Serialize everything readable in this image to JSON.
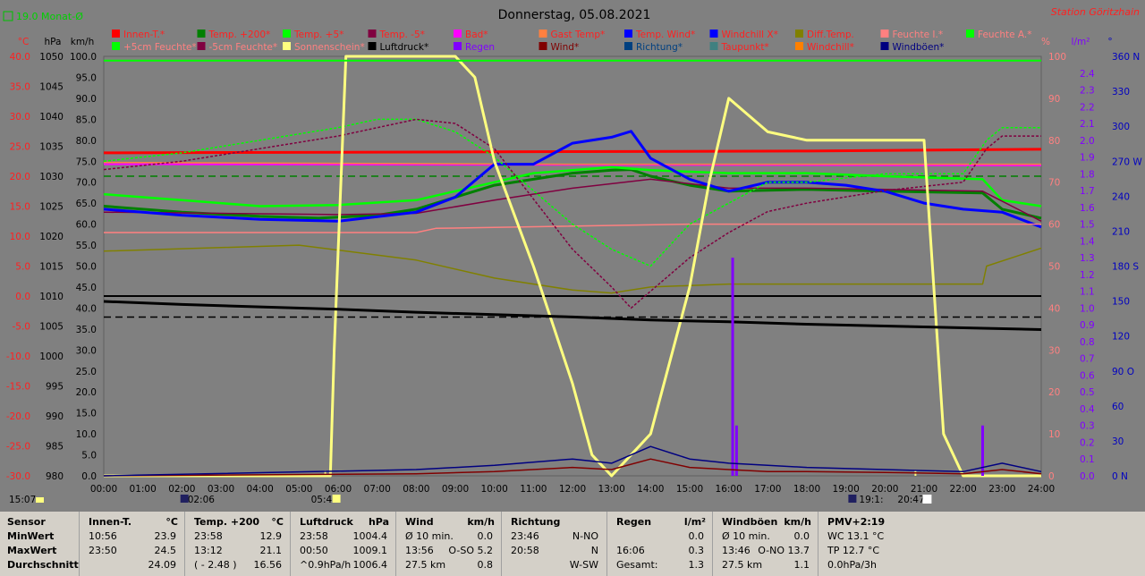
{
  "header": {
    "title": "Donnerstag, 05.08.2021",
    "station": "Station Göritzhain",
    "monthly_avg": "19.0 Monat-Ø"
  },
  "legend": [
    [
      "Innen-T.*",
      "#ff0000",
      "#ff2020"
    ],
    [
      "Temp. +200*",
      "#008000",
      "#ff2020"
    ],
    [
      "Temp. +5*",
      "#00ff00",
      "#ff2020"
    ],
    [
      "Temp. -5*",
      "#800040",
      "#ff2020"
    ],
    [
      "Bad*",
      "#ff00ff",
      "#ff2020"
    ],
    [
      "Gast Temp*",
      "#ff8040",
      "#ff2020"
    ],
    [
      "Temp. Wind*",
      "#0000ff",
      "#ff2020"
    ],
    [
      "Windchill X*",
      "#0000ff",
      "#ff2020"
    ],
    [
      "Diff.Temp.",
      "#808000",
      "#ff2020"
    ],
    [
      "Feuchte I.*",
      "#ff8080",
      "#ff8080"
    ],
    [
      "Feuchte A.*",
      "#00ff00",
      "#ff8080"
    ],
    [
      "+5cm Feuchte*",
      "#00ff00",
      "#ff8080"
    ],
    [
      "-5cm Feuchte*",
      "#800040",
      "#ff8080"
    ],
    [
      "Sonnenschein*",
      "#ffff80",
      "#ff8080"
    ],
    [
      "Luftdruck*",
      "#000000",
      "#000000"
    ],
    [
      "Regen",
      "#8000ff",
      "#8000ff"
    ],
    [
      "Wind*",
      "#800000",
      "#800000"
    ],
    [
      "Richtung*",
      "#004080",
      "#004080"
    ],
    [
      "Taupunkt*",
      "#408080",
      "#ff2020"
    ],
    [
      "Windchill*",
      "#ff8000",
      "#ff2020"
    ],
    [
      "Windböen*",
      "#000080",
      "#000080"
    ]
  ],
  "axes": {
    "temp_unit": "°C",
    "hpa_unit": "hPa",
    "kmh_unit": "km/h",
    "pct_unit": "%",
    "rain_unit": "l/m²",
    "dir_unit": "°",
    "temp": [
      "40.0",
      "35.0",
      "30.0",
      "25.0",
      "20.0",
      "15.0",
      "10.0",
      "5.0",
      "0.0",
      "-5.0",
      "-10.0",
      "-15.0",
      "-20.0",
      "-25.0",
      "-30.0"
    ],
    "hpa": [
      "1050",
      "1045",
      "1040",
      "1035",
      "1030",
      "1025",
      "1020",
      "1015",
      "1010",
      "1005",
      "1000",
      "995",
      "990",
      "985",
      "980"
    ],
    "kmh": [
      "100.0",
      "95.0",
      "90.0",
      "85.0",
      "80.0",
      "75.0",
      "70.0",
      "65.0",
      "60.0",
      "55.0",
      "50.0",
      "45.0",
      "40.0",
      "35.0",
      "30.0",
      "25.0",
      "20.0",
      "15.0",
      "10.0",
      "5.0",
      "0.0"
    ],
    "pct": [
      "100",
      "90",
      "80",
      "70",
      "60",
      "50",
      "40",
      "30",
      "20",
      "10",
      "0"
    ],
    "rain": [
      "2.4",
      "2.3",
      "2.2",
      "2.1",
      "2.0",
      "1.9",
      "1.8",
      "1.7",
      "1.6",
      "1.5",
      "1.4",
      "1.3",
      "1.2",
      "1.1",
      "1.0",
      "0.9",
      "0.8",
      "0.7",
      "0.6",
      "0.5",
      "0.4",
      "0.3",
      "0.2",
      "0.1",
      "0.0"
    ],
    "dir": [
      "360 N",
      "330",
      "300",
      "270 W",
      "240",
      "210",
      "180 S",
      "150",
      "120",
      "90 O",
      "60",
      "30",
      "0 N"
    ],
    "time": [
      "00:00",
      "01:00",
      "02:00",
      "03:00",
      "04:00",
      "05:00",
      "06:00",
      "07:00",
      "08:00",
      "09:00",
      "10:00",
      "11:00",
      "12:00",
      "13:00",
      "14:00",
      "15:00",
      "16:00",
      "17:00",
      "18:00",
      "19:00",
      "20:00",
      "21:00",
      "22:00",
      "23:00",
      "24:00"
    ]
  },
  "markers": {
    "now": "15:07",
    "sunrise": "02:06",
    "sunrise_full": "05:40",
    "sunset_full": "19:1:",
    "sunset": "20:47"
  },
  "chart_data": {
    "type": "line",
    "title": "Donnerstag, 05.08.2021",
    "x_range": [
      "00:00",
      "24:00"
    ],
    "ylim_temp": [
      -30,
      40
    ],
    "ylim_hpa": [
      980,
      1050
    ],
    "ylim_pct": [
      0,
      100
    ],
    "ylim_rain": [
      0,
      2.5
    ],
    "series": [
      {
        "name": "Innen-T.*",
        "axis": "temp",
        "color": "#ff0000",
        "x": [
          0,
          6,
          12,
          18,
          24
        ],
        "y": [
          23.9,
          24.0,
          24.1,
          24.2,
          24.5
        ]
      },
      {
        "name": "Temp. +200*",
        "axis": "temp",
        "color": "#008000",
        "x": [
          0,
          2,
          4,
          5.5,
          7,
          8,
          9,
          10,
          11,
          12,
          13,
          13.5,
          14,
          15,
          16,
          18,
          20,
          22.5,
          23,
          24
        ],
        "y": [
          15.0,
          14.0,
          13.3,
          13.0,
          13.5,
          14.5,
          16.5,
          18.5,
          19.5,
          20.5,
          21.0,
          21.1,
          20.0,
          18.5,
          17.5,
          17.8,
          17.5,
          17.2,
          14.5,
          13.0
        ]
      },
      {
        "name": "Temp. +5*",
        "axis": "temp",
        "color": "#00ff00",
        "x": [
          0,
          2,
          4,
          6,
          8,
          10,
          11,
          12,
          13,
          14,
          16,
          18,
          20,
          22.5,
          23,
          24
        ],
        "y": [
          17.0,
          16.0,
          15.0,
          15.2,
          16.0,
          19.0,
          20.5,
          21.0,
          21.5,
          21.0,
          20.5,
          20.5,
          20.0,
          19.5,
          16.0,
          15.0
        ]
      },
      {
        "name": "Temp. -5*",
        "axis": "temp",
        "color": "#800040",
        "x": [
          0,
          3,
          6,
          8,
          10,
          12,
          14,
          16,
          18,
          20,
          22.5,
          24
        ],
        "y": [
          14.0,
          13.8,
          13.6,
          13.8,
          16.0,
          18.0,
          19.5,
          18.0,
          18.0,
          17.8,
          17.5,
          12.5
        ]
      },
      {
        "name": "Bad*",
        "axis": "temp",
        "color": "#ff00ff",
        "x": [
          0,
          24
        ],
        "y": [
          22.0,
          21.8
        ]
      },
      {
        "name": "Gast Temp*",
        "axis": "temp",
        "color": "#ff8040",
        "x": [
          0,
          12,
          24
        ],
        "y": [
          22.3,
          22.0,
          22.0
        ]
      },
      {
        "name": "Temp. Wind*",
        "axis": "temp",
        "color": "#0000ff",
        "x": [
          0,
          2,
          4,
          6,
          8,
          9,
          10,
          11,
          12,
          13,
          13.5,
          14,
          15,
          16,
          17,
          18,
          19,
          20,
          21,
          22,
          23,
          24
        ],
        "y": [
          14.5,
          13.5,
          12.8,
          12.5,
          14.0,
          16.5,
          22.0,
          22.0,
          25.5,
          26.5,
          27.5,
          23.0,
          19.5,
          17.5,
          19.0,
          19.0,
          18.5,
          17.5,
          15.5,
          14.5,
          14.0,
          11.5
        ]
      },
      {
        "name": "Diff.Temp.",
        "axis": "temp",
        "color": "#808000",
        "x": [
          0,
          5,
          8,
          10,
          12,
          13,
          14,
          16,
          18,
          20,
          22.5,
          22.6,
          24
        ],
        "y": [
          7.5,
          8.5,
          6.0,
          3.0,
          1.0,
          0.5,
          1.5,
          2.0,
          2.0,
          2.0,
          2.0,
          5.0,
          8.0
        ]
      },
      {
        "name": "Feuchte I.*",
        "axis": "pct",
        "color": "#ff8080",
        "x": [
          0,
          8,
          8.5,
          15,
          18,
          22,
          24
        ],
        "y": [
          58,
          58,
          59,
          60,
          60,
          60,
          60
        ]
      },
      {
        "name": "+5cm Feuchte*",
        "axis": "pct",
        "color": "#00ff00",
        "x": [
          0,
          2,
          4,
          6,
          7,
          8,
          9,
          10,
          11,
          12,
          13,
          14,
          15,
          16,
          17,
          18,
          20,
          22,
          22.6,
          23,
          24
        ],
        "y": [
          75,
          77,
          80,
          83,
          85,
          85,
          82,
          76,
          68,
          60,
          54,
          50,
          60,
          65,
          70,
          70,
          72,
          72,
          80,
          83,
          83
        ]
      },
      {
        "name": "-5cm Feuchte*",
        "axis": "pct",
        "color": "#800040",
        "x": [
          0,
          2,
          4,
          6,
          8,
          9,
          10,
          11,
          12,
          13,
          13.5,
          14,
          15,
          16,
          17,
          18,
          20,
          22,
          22.6,
          23,
          24
        ],
        "y": [
          73,
          75,
          78,
          81,
          85,
          84,
          78,
          66,
          54,
          45,
          40,
          44,
          52,
          58,
          63,
          65,
          68,
          70,
          78,
          81,
          81
        ]
      },
      {
        "name": "Sonnenschein*",
        "axis": "pct",
        "color": "#ffff80",
        "x": [
          0,
          5.8,
          5.9,
          6.2,
          9,
          9.5,
          10,
          11,
          12,
          12.5,
          13,
          14,
          15,
          15.5,
          16,
          17,
          18,
          20,
          21,
          21.5,
          22,
          24
        ],
        "y": [
          0,
          0,
          30,
          100,
          100,
          95,
          75,
          50,
          22,
          5,
          0,
          10,
          45,
          70,
          90,
          82,
          80,
          80,
          80,
          10,
          0,
          0
        ]
      },
      {
        "name": "Luftdruck*",
        "axis": "hpa",
        "color": "#000000",
        "x": [
          0,
          2,
          4,
          6,
          8,
          10,
          12,
          14,
          16,
          18,
          20,
          22,
          24
        ],
        "y": [
          1009.1,
          1008.6,
          1008.2,
          1007.8,
          1007.3,
          1006.9,
          1006.5,
          1006.0,
          1005.7,
          1005.3,
          1005.0,
          1004.7,
          1004.4
        ]
      },
      {
        "name": "Regen",
        "axis": "rain",
        "color": "#8000ff",
        "x": [
          16.1,
          16.2,
          22.5
        ],
        "y": [
          1.3,
          0.3,
          0.3
        ]
      },
      {
        "name": "Wind*",
        "axis": "kmh",
        "color": "#800000",
        "x": [
          0,
          8,
          10,
          12,
          13,
          14,
          15,
          16,
          17,
          18,
          20,
          22,
          23,
          24
        ],
        "y": [
          0,
          0.5,
          1.0,
          2.0,
          1.5,
          4.0,
          2.0,
          1.5,
          1.0,
          1.0,
          0.8,
          0.5,
          1.5,
          0.5
        ]
      },
      {
        "name": "Windböen*",
        "axis": "kmh",
        "color": "#000080",
        "x": [
          0,
          8,
          10,
          12,
          13,
          14,
          15,
          16,
          17,
          18,
          20,
          22,
          23,
          24
        ],
        "y": [
          0,
          1.5,
          2.5,
          4.0,
          3.0,
          7.0,
          4.0,
          3.0,
          2.5,
          2.0,
          1.5,
          1.0,
          3.0,
          1.0
        ]
      },
      {
        "name": "Feuchte A.*",
        "axis": "pct",
        "color": "#00ff00",
        "x": [
          0,
          24
        ],
        "y": [
          99,
          99
        ]
      }
    ],
    "reference_lines": [
      {
        "axis": "temp",
        "value": 20.0,
        "color": "#008000",
        "dashed": true
      },
      {
        "axis": "hpa",
        "value": 1010.0,
        "color": "#000000"
      },
      {
        "axis": "hpa",
        "value": 1006.5,
        "color": "#000000",
        "dashed": true
      }
    ]
  },
  "stats": [
    {
      "rows": [
        [
          "Sensor"
        ],
        [
          "MinWert"
        ],
        [
          "MaxWert"
        ],
        [
          "Durchschnitt"
        ]
      ]
    },
    {
      "head": [
        "Innen-T.",
        "°C"
      ],
      "rows": [
        [
          "10:56",
          "23.9"
        ],
        [
          "23:50",
          "24.5"
        ],
        [
          "",
          "24.09"
        ]
      ]
    },
    {
      "head": [
        "Temp. +200",
        "°C"
      ],
      "rows": [
        [
          "23:58",
          "12.9"
        ],
        [
          "13:12",
          "21.1"
        ],
        [
          "( - 2.48 )",
          "16.56"
        ]
      ]
    },
    {
      "head": [
        "Luftdruck",
        "hPa"
      ],
      "rows": [
        [
          "23:58",
          "1004.4"
        ],
        [
          "00:50",
          "1009.1"
        ],
        [
          "^0.9hPa/h",
          "1006.4"
        ]
      ]
    },
    {
      "head": [
        "Wind",
        "km/h"
      ],
      "rows": [
        [
          "Ø 10 min.",
          "0.0"
        ],
        [
          "13:56",
          "O-SO 5.2"
        ],
        [
          "27.5 km",
          "0.8"
        ]
      ]
    },
    {
      "head": [
        "Richtung",
        ""
      ],
      "rows": [
        [
          "23:46",
          "N-NO"
        ],
        [
          "20:58",
          "N"
        ],
        [
          "",
          "W-SW"
        ]
      ]
    },
    {
      "head": [
        "Regen",
        "l/m²"
      ],
      "rows": [
        [
          "",
          "0.0"
        ],
        [
          "16:06",
          "0.3"
        ],
        [
          "Gesamt:",
          "1.3"
        ]
      ]
    },
    {
      "head": [
        "Windböen",
        "km/h"
      ],
      "rows": [
        [
          "Ø 10 min.",
          "0.0"
        ],
        [
          "13:46",
          "O-NO 13.7"
        ],
        [
          "27.5 km",
          "1.1"
        ]
      ]
    },
    {
      "head": [
        "PMV+2:19",
        ""
      ],
      "rows": [
        [
          "WC 13.1 °C",
          ""
        ],
        [
          "TP 12.7 °C",
          ""
        ],
        [
          "0.0hPa/3h",
          ""
        ]
      ]
    }
  ]
}
